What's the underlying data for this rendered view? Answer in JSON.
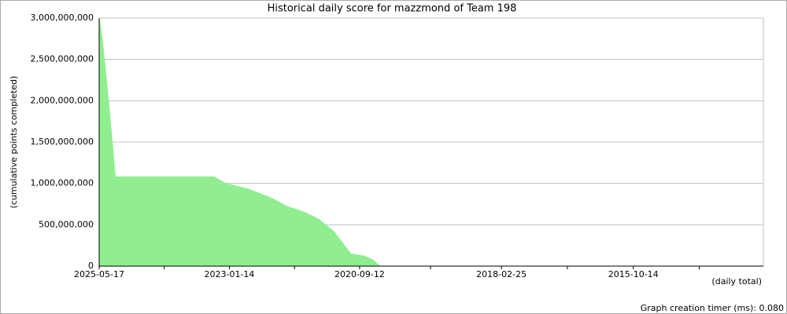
{
  "chart_data": {
    "type": "area",
    "title": "Historical daily score for mazzmond of Team 198",
    "y_label": "(cumulative points completed)",
    "x_label": "(daily total)",
    "x": [
      "2025-05-17",
      "2025-04-27",
      "2025-04-02",
      "2025-03-07",
      "2025-01-31",
      "2024-05-08",
      "2023-04-24",
      "2023-02-07",
      "2022-09-09",
      "2022-04-10",
      "2021-12-30",
      "2021-09-19",
      "2021-06-10",
      "2021-03-01",
      "2020-12-25",
      "2020-11-10",
      "2020-08-11",
      "2020-06-21",
      "2020-05-02"
    ],
    "series": [
      {
        "color": "#90ee90",
        "values": [
          3000000000,
          2750000000,
          2300000000,
          1800000000,
          1080000000,
          1080000000,
          1080000000,
          1000000000,
          930000000,
          820000000,
          720000000,
          660000000,
          570000000,
          420000000,
          260000000,
          150000000,
          120000000,
          80000000,
          0
        ]
      }
    ],
    "xlim": [
      "2025-05-17",
      "2013-06-13"
    ],
    "xticks": [
      "2025-05-17",
      "2023-01-14",
      "2020-09-12",
      "2018-02-25",
      "2015-10-14"
    ],
    "ylim": [
      0,
      3000000000
    ],
    "yticks": [
      {
        "value": 0,
        "label": "0"
      },
      {
        "value": 500000000,
        "label": "500,000,000"
      },
      {
        "value": 1000000000,
        "label": "1,000,000,000"
      },
      {
        "value": 1500000000,
        "label": "1,500,000,000"
      },
      {
        "value": 2000000000,
        "label": "2,000,000,000"
      },
      {
        "value": 2500000000,
        "label": "2,500,000,000"
      },
      {
        "value": 3000000000,
        "label": "3,000,000,000"
      }
    ],
    "grid": true
  },
  "footer": "Graph creation timer (ms): 0.080"
}
